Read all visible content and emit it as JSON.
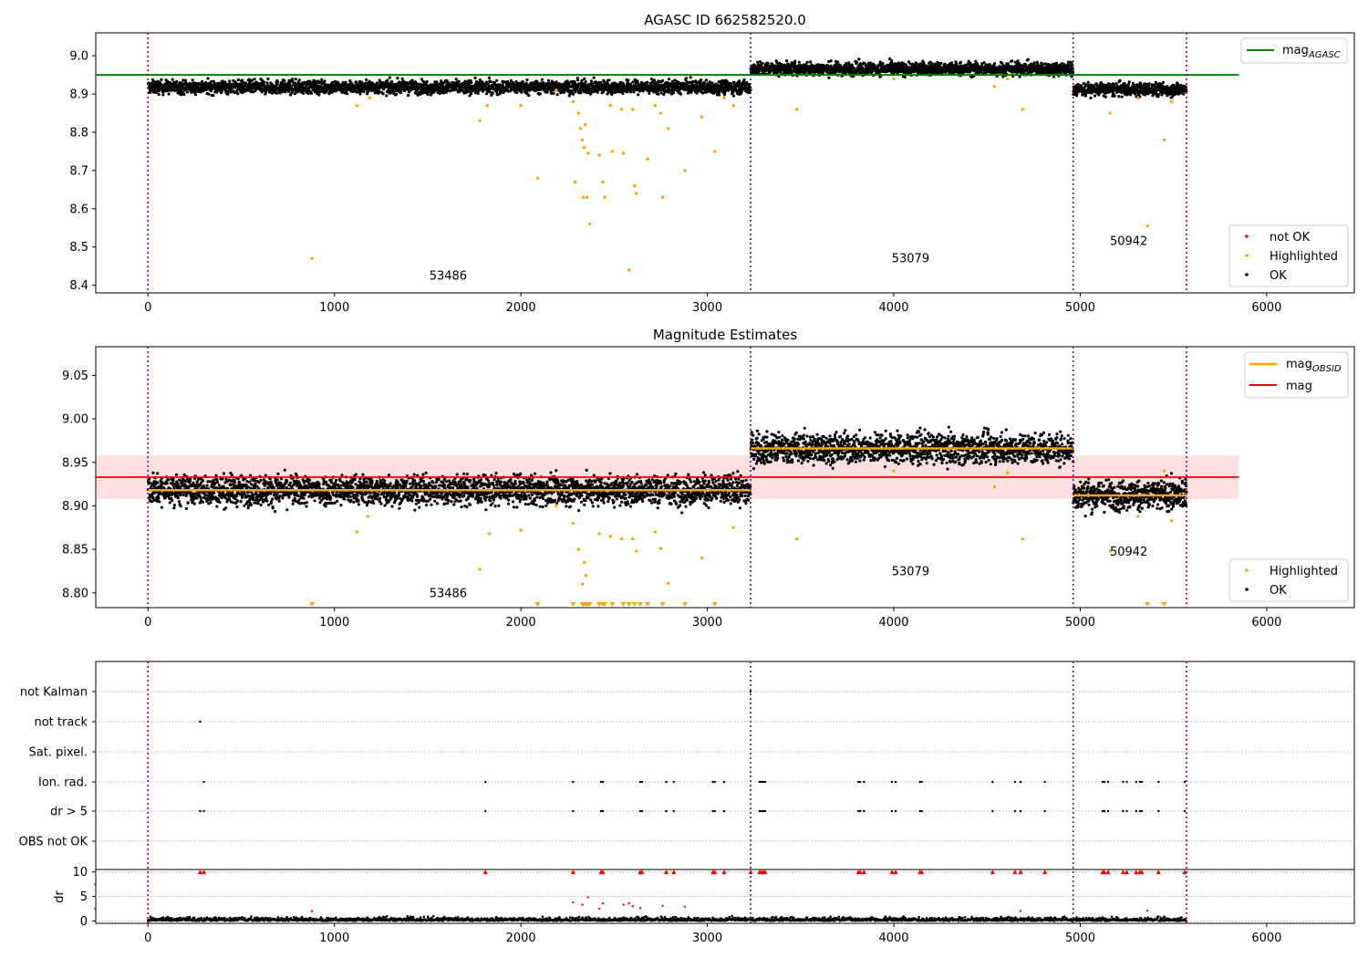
{
  "chart_data": [
    {
      "type": "scatter",
      "title": "AGASC ID 662582520.0",
      "xlim": [
        -280,
        6470
      ],
      "ylim": [
        8.38,
        9.06
      ],
      "xticks": [
        "0",
        "1000",
        "2000",
        "3000",
        "4000",
        "5000",
        "6000"
      ],
      "yticks": [
        "8.4",
        "8.5",
        "8.6",
        "8.7",
        "8.8",
        "8.9",
        "9.0"
      ],
      "obsid_boundaries": [
        0,
        3232,
        4962,
        5570
      ],
      "obsid_labels": [
        {
          "text": "53486",
          "x": 1610,
          "y": 8.415
        },
        {
          "text": "53079",
          "x": 4090,
          "y": 8.46
        },
        {
          "text": "50942",
          "x": 5260,
          "y": 8.505
        }
      ],
      "mag_agasc": 8.95,
      "legend_top": {
        "label": "mag",
        "sub": "AGASC",
        "color": "#008000"
      },
      "legend_bottom": [
        {
          "label": "not OK",
          "color": "#ff0000"
        },
        {
          "label": "Highlighted",
          "color": "#ffa500"
        },
        {
          "label": "OK",
          "color": "#000000"
        }
      ],
      "segment_levels": [
        {
          "x": [
            0,
            3232
          ],
          "mean": 8.918
        },
        {
          "x": [
            3232,
            4962
          ],
          "mean": 8.966
        },
        {
          "x": [
            4962,
            5570
          ],
          "mean": 8.912
        }
      ],
      "highlighted_points": [
        [
          880,
          8.47
        ],
        [
          1120,
          8.87
        ],
        [
          1190,
          8.89
        ],
        [
          1780,
          8.83
        ],
        [
          1820,
          8.87
        ],
        [
          2000,
          8.87
        ],
        [
          2090,
          8.68
        ],
        [
          2190,
          8.91
        ],
        [
          2280,
          8.88
        ],
        [
          2290,
          8.67
        ],
        [
          2310,
          8.85
        ],
        [
          2320,
          8.81
        ],
        [
          2330,
          8.78
        ],
        [
          2335,
          8.63
        ],
        [
          2340,
          8.76
        ],
        [
          2345,
          8.82
        ],
        [
          2355,
          8.63
        ],
        [
          2360,
          8.745
        ],
        [
          2370,
          8.56
        ],
        [
          2420,
          8.74
        ],
        [
          2440,
          8.67
        ],
        [
          2450,
          8.63
        ],
        [
          2480,
          8.87
        ],
        [
          2490,
          8.75
        ],
        [
          2540,
          8.86
        ],
        [
          2550,
          8.745
        ],
        [
          2580,
          8.44
        ],
        [
          2600,
          8.86
        ],
        [
          2610,
          8.66
        ],
        [
          2620,
          8.64
        ],
        [
          2680,
          8.73
        ],
        [
          2720,
          8.87
        ],
        [
          2750,
          8.85
        ],
        [
          2760,
          8.63
        ],
        [
          2790,
          8.81
        ],
        [
          2880,
          8.7
        ],
        [
          2970,
          8.84
        ],
        [
          3040,
          8.75
        ],
        [
          3090,
          8.89
        ],
        [
          3140,
          8.87
        ],
        [
          3480,
          8.86
        ],
        [
          4000,
          8.94
        ],
        [
          4540,
          8.92
        ],
        [
          4610,
          8.94
        ],
        [
          4690,
          8.86
        ],
        [
          5160,
          8.85
        ],
        [
          5310,
          8.89
        ],
        [
          5360,
          8.555
        ],
        [
          5450,
          8.78
        ],
        [
          5490,
          8.88
        ]
      ]
    },
    {
      "type": "scatter",
      "title": "Magnitude Estimates",
      "xlim": [
        -280,
        6470
      ],
      "ylim": [
        8.783,
        9.083
      ],
      "xticks": [
        "0",
        "1000",
        "2000",
        "3000",
        "4000",
        "5000",
        "6000"
      ],
      "yticks": [
        "8.80",
        "8.85",
        "8.90",
        "8.95",
        "9.00",
        "9.05"
      ],
      "obsid_boundaries": [
        0,
        3232,
        4962,
        5570
      ],
      "obsid_labels": [
        {
          "text": "53486",
          "x": 1610,
          "y": 8.795
        },
        {
          "text": "53079",
          "x": 4090,
          "y": 8.82
        },
        {
          "text": "50942",
          "x": 5260,
          "y": 8.843
        }
      ],
      "mag": 8.933,
      "mag_band": [
        8.908,
        8.958
      ],
      "legend_top": [
        {
          "label": "mag",
          "sub": "OBSID",
          "color": "#ffa500"
        },
        {
          "label": "mag",
          "sub": "",
          "color": "#ff0000"
        }
      ],
      "legend_bottom": [
        {
          "label": "Highlighted",
          "color": "#ffa500"
        },
        {
          "label": "OK",
          "color": "#000000"
        }
      ],
      "segment_levels": [
        {
          "x": [
            0,
            3232
          ],
          "mean": 8.918
        },
        {
          "x": [
            3232,
            4962
          ],
          "mean": 8.966
        },
        {
          "x": [
            4962,
            5570
          ],
          "mean": 8.912
        }
      ],
      "highlighted_points": [
        [
          1120,
          8.87
        ],
        [
          1180,
          8.888
        ],
        [
          1780,
          8.827
        ],
        [
          1830,
          8.868
        ],
        [
          2000,
          8.872
        ],
        [
          2190,
          8.9
        ],
        [
          2280,
          8.88
        ],
        [
          2310,
          8.85
        ],
        [
          2330,
          8.81
        ],
        [
          2340,
          8.835
        ],
        [
          2350,
          8.82
        ],
        [
          2420,
          8.868
        ],
        [
          2480,
          8.865
        ],
        [
          2540,
          8.862
        ],
        [
          2600,
          8.862
        ],
        [
          2620,
          8.848
        ],
        [
          2720,
          8.87
        ],
        [
          2750,
          8.851
        ],
        [
          2790,
          8.811
        ],
        [
          2970,
          8.84
        ],
        [
          3140,
          8.875
        ],
        [
          3480,
          8.862
        ],
        [
          4000,
          8.94
        ],
        [
          4540,
          8.922
        ],
        [
          4610,
          8.938
        ],
        [
          4690,
          8.862
        ],
        [
          5160,
          8.848
        ],
        [
          5310,
          8.888
        ],
        [
          5450,
          8.94
        ],
        [
          5490,
          8.883
        ]
      ],
      "clipped_below": [
        880,
        2090,
        2280,
        2330,
        2335,
        2345,
        2355,
        2360,
        2370,
        2420,
        2440,
        2450,
        2490,
        2550,
        2580,
        2610,
        2640,
        2680,
        2760,
        2880,
        3040,
        5360,
        5450
      ]
    },
    {
      "type": "scatter",
      "title": "",
      "xlim": [
        -280,
        6470
      ],
      "xticks": [
        "0",
        "1000",
        "2000",
        "3000",
        "4000",
        "5000",
        "6000"
      ],
      "obsid_boundaries": [
        0,
        3232,
        4962,
        5570
      ],
      "flag_rows": [
        "not Kalman",
        "not track",
        "Sat. pixel.",
        "Ion. rad.",
        "dr > 5",
        "OBS not OK"
      ],
      "flag_points": {
        "not Kalman": [
          3232
        ],
        "not track": [
          280
        ],
        "Sat. pixel.": [],
        "Ion. rad.": [
          300,
          1810,
          2280,
          2430,
          2440,
          2640,
          2650,
          2780,
          2820,
          3030,
          3040,
          3090,
          3280,
          3290,
          3300,
          3310,
          3810,
          3820,
          3840,
          3990,
          4010,
          4140,
          4150,
          4530,
          4650,
          4680,
          4810,
          5120,
          5130,
          5150,
          5230,
          5250,
          5300,
          5320,
          5330,
          5420,
          5560
        ],
        "dr > 5": [
          280,
          300,
          1810,
          2280,
          2430,
          2440,
          2640,
          2650,
          2780,
          2820,
          3030,
          3040,
          3090,
          3280,
          3290,
          3300,
          3310,
          3810,
          3820,
          3840,
          3990,
          4010,
          4140,
          4150,
          4530,
          4650,
          4680,
          4810,
          5120,
          5130,
          5150,
          5230,
          5250,
          5300,
          5320,
          5330,
          5420,
          5560
        ],
        "OBS not OK": []
      },
      "dr_ylabel": "dr",
      "dr_yticks": [
        "0",
        "5",
        "10"
      ],
      "dr_ylim": [
        -0.5,
        10.5
      ],
      "dr_clipped": [
        280,
        300,
        1810,
        2280,
        2430,
        2440,
        2640,
        2650,
        2780,
        2820,
        3030,
        3040,
        3090,
        3232,
        3280,
        3290,
        3300,
        3310,
        3810,
        3820,
        3840,
        3990,
        4010,
        4140,
        4150,
        4530,
        4650,
        4680,
        4810,
        5120,
        5130,
        5150,
        5230,
        5250,
        5300,
        5320,
        5330,
        5420,
        5560
      ],
      "dr_highlighted": [
        [
          2280,
          3.8
        ],
        [
          2330,
          3.3
        ],
        [
          2360,
          4.8
        ],
        [
          2420,
          2.5
        ],
        [
          2440,
          3.6
        ],
        [
          2550,
          3.3
        ],
        [
          2580,
          3.6
        ],
        [
          2600,
          3.0
        ],
        [
          2640,
          2.6
        ],
        [
          2760,
          3.1
        ],
        [
          2880,
          2.9
        ],
        [
          880,
          2.0
        ],
        [
          4680,
          2.0
        ],
        [
          5360,
          2.1
        ]
      ]
    }
  ]
}
